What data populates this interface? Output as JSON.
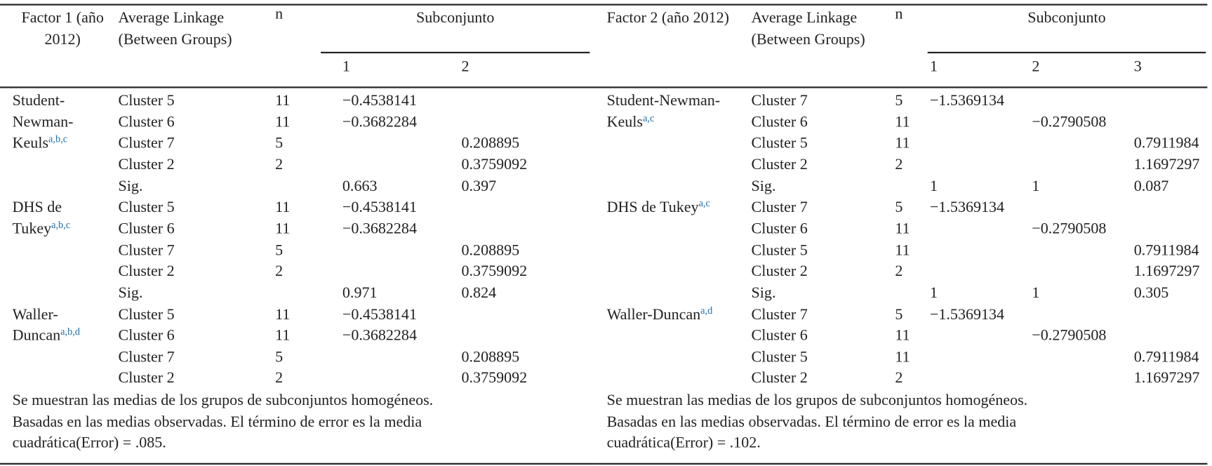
{
  "tables": [
    {
      "header": {
        "factor": "Factor 1 (año 2012)",
        "linkage": "Average Linkage (Between Groups)",
        "n": "n",
        "subset": "Subconjunto",
        "subset_columns": [
          "1",
          "2"
        ]
      },
      "groups": [
        {
          "method": "Student-Newman-Keuls",
          "superscript": "a,b,c",
          "rows": [
            [
              "Cluster 5",
              "11",
              "−0.4538141",
              null
            ],
            [
              "Cluster 6",
              "11",
              "−0.3682284",
              null
            ],
            [
              "Cluster 7",
              "5",
              null,
              "0.208895"
            ],
            [
              "Cluster 2",
              "2",
              null,
              "0.3759092"
            ],
            [
              "Sig.",
              null,
              "0.663",
              "0.397"
            ]
          ]
        },
        {
          "method": "DHS de Tukey",
          "superscript": "a,b,c",
          "rows": [
            [
              "Cluster 5",
              "11",
              "−0.4538141",
              null
            ],
            [
              "Cluster 6",
              "11",
              "−0.3682284",
              null
            ],
            [
              "Cluster 7",
              "5",
              null,
              "0.208895"
            ],
            [
              "Cluster 2",
              "2",
              null,
              "0.3759092"
            ],
            [
              "Sig.",
              null,
              "0.971",
              "0.824"
            ]
          ]
        },
        {
          "method": "Waller-Duncan",
          "superscript": "a,b,d",
          "rows": [
            [
              "Cluster 5",
              "11",
              "−0.4538141",
              null
            ],
            [
              "Cluster 6",
              "11",
              "−0.3682284",
              null
            ],
            [
              "Cluster 7",
              "5",
              null,
              "0.208895"
            ],
            [
              "Cluster 2",
              "2",
              null,
              "0.3759092"
            ]
          ]
        }
      ],
      "notes": [
        "Se muestran las medias de los grupos de subconjuntos homogéneos.",
        "Basadas en las medias observadas. El término de error es la media cuadrática(Error) = .085."
      ]
    },
    {
      "header": {
        "factor": "Factor 2 (año 2012)",
        "linkage": "Average Linkage (Between Groups)",
        "n": "n",
        "subset": "Subconjunto",
        "subset_columns": [
          "1",
          "2",
          "3"
        ]
      },
      "groups": [
        {
          "method": "Student-Newman-Keuls",
          "superscript": "a,c",
          "rows": [
            [
              "Cluster 7",
              "5",
              "−1.5369134",
              null,
              null
            ],
            [
              "Cluster 6",
              "11",
              null,
              "−0.2790508",
              null
            ],
            [
              "Cluster 5",
              "11",
              null,
              null,
              "0.7911984"
            ],
            [
              "Cluster 2",
              "2",
              null,
              null,
              "1.1697297"
            ],
            [
              "Sig.",
              null,
              "1",
              "1",
              "0.087"
            ]
          ]
        },
        {
          "method": "DHS de Tukey",
          "superscript": "a,c",
          "rows": [
            [
              "Cluster 7",
              "5",
              "−1.5369134",
              null,
              null
            ],
            [
              "Cluster 6",
              "11",
              null,
              "−0.2790508",
              null
            ],
            [
              "Cluster 5",
              "11",
              null,
              null,
              "0.7911984"
            ],
            [
              "Cluster 2",
              "2",
              null,
              null,
              "1.1697297"
            ],
            [
              "Sig.",
              null,
              "1",
              "1",
              "0.305"
            ]
          ]
        },
        {
          "method": "Waller-Duncan",
          "superscript": "a,d",
          "rows": [
            [
              "Cluster 7",
              "5",
              "−1.5369134",
              null,
              null
            ],
            [
              "Cluster 6",
              "11",
              null,
              "−0.2790508",
              null
            ],
            [
              "Cluster 5",
              "11",
              null,
              null,
              "0.7911984"
            ],
            [
              "Cluster 2",
              "2",
              null,
              null,
              "1.1697297"
            ]
          ]
        }
      ],
      "notes": [
        "Se muestran las medias de los grupos de subconjuntos homogéneos.",
        "Basadas en las medias observadas. El término de error es la media cuadrática(Error) = .102."
      ]
    }
  ]
}
